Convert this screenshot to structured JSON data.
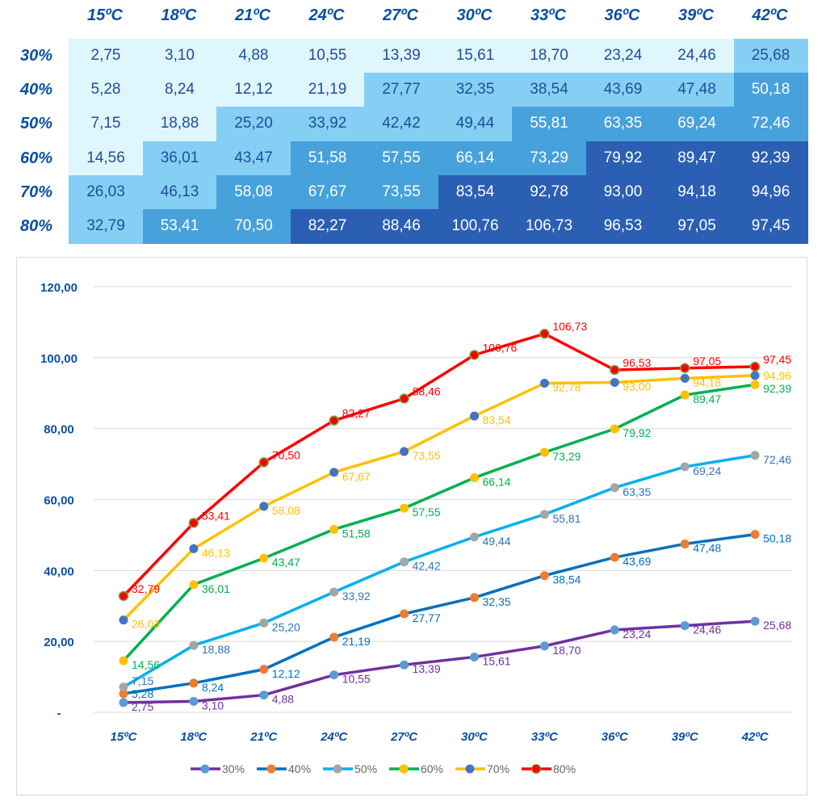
{
  "chart_data": [
    {
      "type": "table",
      "columns": [
        "15ºC",
        "18ºC",
        "21ºC",
        "24ºC",
        "27ºC",
        "30ºC",
        "33ºC",
        "36ºC",
        "39ºC",
        "42ºC"
      ],
      "rows": [
        "30%",
        "40%",
        "50%",
        "60%",
        "70%",
        "80%"
      ],
      "values": [
        [
          "2,75",
          "3,10",
          "4,88",
          "10,55",
          "13,39",
          "15,61",
          "18,70",
          "23,24",
          "24,46",
          "25,68"
        ],
        [
          "5,28",
          "8,24",
          "12,12",
          "21,19",
          "27,77",
          "32,35",
          "38,54",
          "43,69",
          "47,48",
          "50,18"
        ],
        [
          "7,15",
          "18,88",
          "25,20",
          "33,92",
          "42,42",
          "49,44",
          "55,81",
          "63,35",
          "69,24",
          "72,46"
        ],
        [
          "14,56",
          "36,01",
          "43,47",
          "51,58",
          "57,55",
          "66,14",
          "73,29",
          "79,92",
          "89,47",
          "92,39"
        ],
        [
          "26,03",
          "46,13",
          "58,08",
          "67,67",
          "73,55",
          "83,54",
          "92,78",
          "93,00",
          "94,18",
          "94,96"
        ],
        [
          "32,79",
          "53,41",
          "70,50",
          "82,27",
          "88,46",
          "100,76",
          "106,73",
          "96,53",
          "97,05",
          "97,45"
        ]
      ],
      "cell_colors": {
        "lt25": "#e0f6fd",
        "lt50": "#85cff5",
        "lt75": "#47a1db",
        "ge75": "#2b5fb3"
      }
    },
    {
      "type": "line",
      "categories": [
        "15ºC",
        "18ºC",
        "21ºC",
        "24ºC",
        "27ºC",
        "30ºC",
        "33ºC",
        "36ºC",
        "39ºC",
        "42ºC"
      ],
      "ylim": [
        0,
        120
      ],
      "yticks": [
        "-",
        "20,00",
        "40,00",
        "60,00",
        "80,00",
        "100,00",
        "120,00"
      ],
      "grid": true,
      "legend": "bottom",
      "series": [
        {
          "name": "30%",
          "line": "#7030a0",
          "marker": "#5b9bd5",
          "label": "#7030a0",
          "values": [
            2.75,
            3.1,
            4.88,
            10.55,
            13.39,
            15.61,
            18.7,
            23.24,
            24.46,
            25.68
          ]
        },
        {
          "name": "40%",
          "line": "#0070c0",
          "marker": "#ed7d31",
          "label": "#0070c0",
          "values": [
            5.28,
            8.24,
            12.12,
            21.19,
            27.77,
            32.35,
            38.54,
            43.69,
            47.48,
            50.18
          ]
        },
        {
          "name": "50%",
          "line": "#00b0f0",
          "marker": "#a5a5a5",
          "label": "#2e75b6",
          "values": [
            7.15,
            18.88,
            25.2,
            33.92,
            42.42,
            49.44,
            55.81,
            63.35,
            69.24,
            72.46
          ]
        },
        {
          "name": "60%",
          "line": "#00b050",
          "marker": "#ffc000",
          "label": "#00b050",
          "values": [
            14.56,
            36.01,
            43.47,
            51.58,
            57.55,
            66.14,
            73.29,
            79.92,
            89.47,
            92.39
          ]
        },
        {
          "name": "70%",
          "line": "#ffc000",
          "marker": "#4472c4",
          "label": "#ffc000",
          "values": [
            26.03,
            46.13,
            58.08,
            67.67,
            73.55,
            83.54,
            92.78,
            93.0,
            94.18,
            94.96
          ]
        },
        {
          "name": "80%",
          "line": "#ff0000",
          "marker": "#ff0000",
          "label": "#ff0000",
          "values": [
            32.79,
            53.41,
            70.5,
            82.27,
            88.46,
            100.76,
            106.73,
            96.53,
            97.05,
            97.45
          ]
        }
      ]
    }
  ]
}
